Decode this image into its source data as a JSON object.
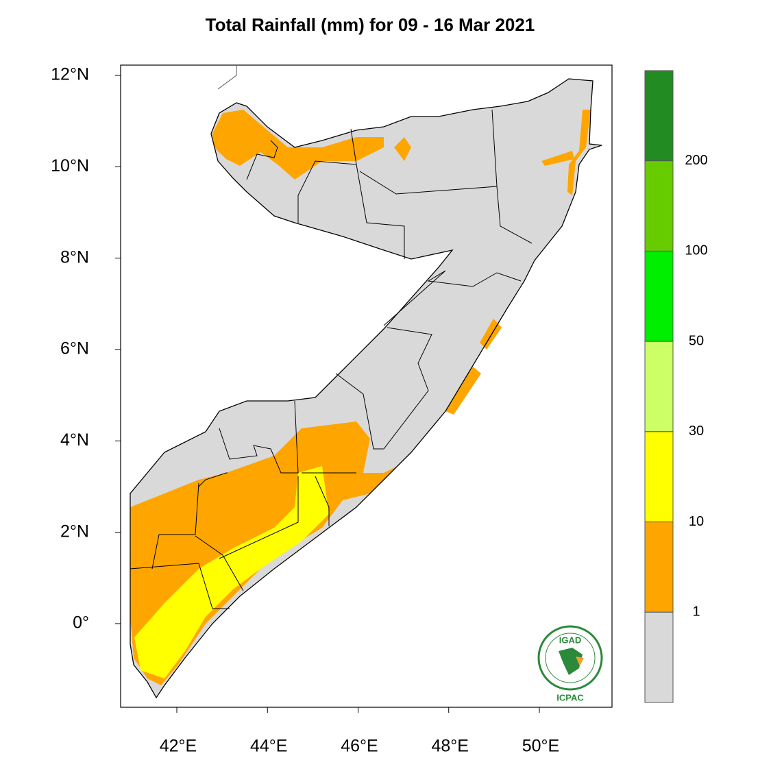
{
  "title": "Total Rainfall (mm) for 09 - 16 Mar 2021",
  "map": {
    "lat_ticks": [
      "12°N",
      "10°N",
      "8°N",
      "6°N",
      "4°N",
      "2°N",
      "0°"
    ],
    "lon_ticks": [
      "42°E",
      "44°E",
      "46°E",
      "48°E",
      "50°E"
    ]
  },
  "legend": {
    "labels": [
      "200",
      "100",
      "50",
      "30",
      "10",
      "1"
    ],
    "colors": [
      "#228b22",
      "#66cc00",
      "#00ee00",
      "#ccff66",
      "#ffff00",
      "#ffa500",
      "#d9d9d9"
    ]
  },
  "logo": {
    "name": "IGAD",
    "org": "ICPAC"
  }
}
